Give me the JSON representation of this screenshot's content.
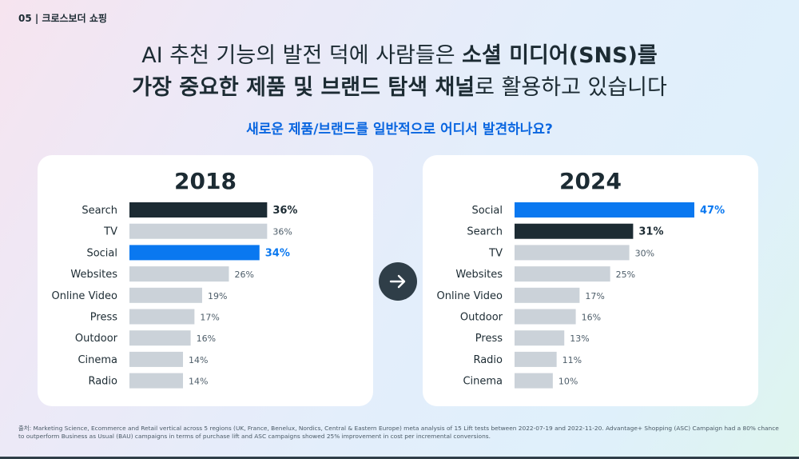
{
  "section_label": "05 | 크로스보더 쇼핑",
  "headline": {
    "line1_plain": "AI 추천 기능의 발전 덕에 사람들은 ",
    "line1_bold": "소셜 미디어(SNS)를",
    "line2_bold": "가장 중요한 제품 및 브랜드 탐색 채널",
    "line2_plain": "로 활용하고 있습니다"
  },
  "subtitle": "새로운 제품/브랜드를 일반적으로 어디서 발견하나요?",
  "colors": {
    "dark": "#1c2b33",
    "highlight": "#0a78f0",
    "gray_bar": "#cbd2d9",
    "label": "#1c2b33",
    "value_gray": "#4d5d69"
  },
  "icons": {
    "arrow": "arrow-right-icon"
  },
  "chart_data": [
    {
      "type": "bar",
      "orientation": "horizontal",
      "title": "2018",
      "categories": [
        "Search",
        "TV",
        "Social",
        "Websites",
        "Online Video",
        "Press",
        "Outdoor",
        "Cinema",
        "Radio"
      ],
      "values": [
        36,
        36,
        34,
        26,
        19,
        17,
        16,
        14,
        14
      ],
      "value_labels": [
        "36%",
        "36%",
        "34%",
        "26%",
        "19%",
        "17%",
        "16%",
        "14%",
        "14%"
      ],
      "styles": [
        "dark",
        "gray",
        "highlight",
        "gray",
        "gray",
        "gray",
        "gray",
        "gray",
        "gray"
      ],
      "xlim": [
        0,
        47
      ]
    },
    {
      "type": "bar",
      "orientation": "horizontal",
      "title": "2024",
      "categories": [
        "Social",
        "Search",
        "TV",
        "Websites",
        "Online Video",
        "Outdoor",
        "Press",
        "Radio",
        "Cinema"
      ],
      "values": [
        47,
        31,
        30,
        25,
        17,
        16,
        13,
        11,
        10
      ],
      "value_labels": [
        "47%",
        "31%",
        "30%",
        "25%",
        "17%",
        "16%",
        "13%",
        "11%",
        "10%"
      ],
      "styles": [
        "highlight",
        "dark",
        "gray",
        "gray",
        "gray",
        "gray",
        "gray",
        "gray",
        "gray"
      ],
      "xlim": [
        0,
        47
      ]
    }
  ],
  "footnote": "출처: Marketing Science, Ecommerce and Retail vertical across 5 regions (UK, France, Benelux, Nordics, Central & Eastern Europe) meta analysis of 15 Lift tests between 2022-07-19 and 2022-11-20. Advantage+ Shopping (ASC) Campaign had a 80% chance to outperform Business as Usual (BAU) campaigns in terms of purchase lift and ASC campaigns showed 25% improvement in cost per incremental conversions."
}
